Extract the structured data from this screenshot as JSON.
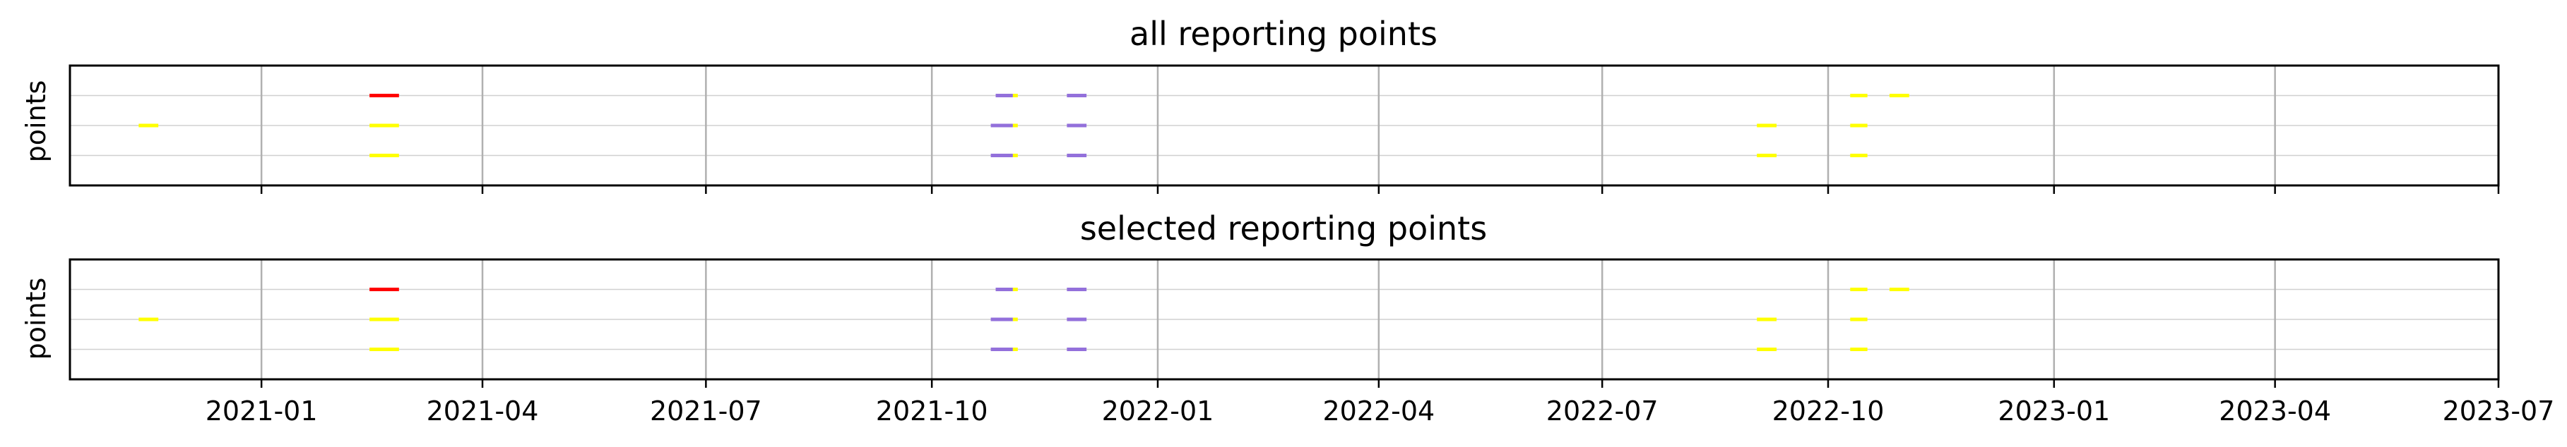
{
  "chart_data": [
    {
      "type": "timeline",
      "title": "all reporting points",
      "ylabel": "points",
      "xlim": [
        "2020-10-15",
        "2023-07-01"
      ],
      "ylim": [
        0,
        4
      ],
      "grid": {
        "x": true,
        "y": true
      },
      "row_values": [
        1,
        2,
        3
      ],
      "segments": [
        {
          "row": 2,
          "start": "2020-11-12",
          "end": "2020-11-20",
          "color": "#ffff00"
        },
        {
          "row": 3,
          "start": "2021-02-14",
          "end": "2021-02-26",
          "color": "#ff0000"
        },
        {
          "row": 2,
          "start": "2021-02-14",
          "end": "2021-02-26",
          "color": "#ffff00"
        },
        {
          "row": 1,
          "start": "2021-02-14",
          "end": "2021-02-26",
          "color": "#ffff00"
        },
        {
          "row": 3,
          "start": "2021-10-27",
          "end": "2021-11-03",
          "color": "#9370db"
        },
        {
          "row": 3,
          "start": "2021-11-03",
          "end": "2021-11-05",
          "color": "#ffff00"
        },
        {
          "row": 2,
          "start": "2021-10-25",
          "end": "2021-11-03",
          "color": "#9370db"
        },
        {
          "row": 2,
          "start": "2021-11-03",
          "end": "2021-11-05",
          "color": "#ffff00"
        },
        {
          "row": 1,
          "start": "2021-10-25",
          "end": "2021-11-03",
          "color": "#9370db"
        },
        {
          "row": 1,
          "start": "2021-11-03",
          "end": "2021-11-05",
          "color": "#ffff00"
        },
        {
          "row": 3,
          "start": "2021-11-25",
          "end": "2021-12-03",
          "color": "#9370db"
        },
        {
          "row": 2,
          "start": "2021-11-25",
          "end": "2021-12-03",
          "color": "#9370db"
        },
        {
          "row": 1,
          "start": "2021-11-25",
          "end": "2021-12-03",
          "color": "#9370db"
        },
        {
          "row": 2,
          "start": "2022-09-02",
          "end": "2022-09-10",
          "color": "#ffff00"
        },
        {
          "row": 1,
          "start": "2022-09-02",
          "end": "2022-09-10",
          "color": "#ffff00"
        },
        {
          "row": 3,
          "start": "2022-10-10",
          "end": "2022-10-17",
          "color": "#ffff00"
        },
        {
          "row": 2,
          "start": "2022-10-10",
          "end": "2022-10-17",
          "color": "#ffff00"
        },
        {
          "row": 1,
          "start": "2022-10-10",
          "end": "2022-10-17",
          "color": "#ffff00"
        },
        {
          "row": 3,
          "start": "2022-10-26",
          "end": "2022-11-03",
          "color": "#ffff00"
        }
      ],
      "x_ticks": [
        "2021-01-01",
        "2021-04-01",
        "2021-07-01",
        "2021-10-01",
        "2022-01-01",
        "2022-04-01",
        "2022-07-01",
        "2022-10-01",
        "2023-01-01",
        "2023-04-01",
        "2023-07-01"
      ],
      "x_tick_labels": []
    },
    {
      "type": "timeline",
      "title": "selected reporting points",
      "ylabel": "points",
      "xlim": [
        "2020-10-15",
        "2023-07-01"
      ],
      "ylim": [
        0,
        4
      ],
      "grid": {
        "x": true,
        "y": true
      },
      "row_values": [
        1,
        2,
        3
      ],
      "segments": [
        {
          "row": 2,
          "start": "2020-11-12",
          "end": "2020-11-20",
          "color": "#ffff00"
        },
        {
          "row": 3,
          "start": "2021-02-14",
          "end": "2021-02-26",
          "color": "#ff0000"
        },
        {
          "row": 2,
          "start": "2021-02-14",
          "end": "2021-02-26",
          "color": "#ffff00"
        },
        {
          "row": 1,
          "start": "2021-02-14",
          "end": "2021-02-26",
          "color": "#ffff00"
        },
        {
          "row": 3,
          "start": "2021-10-27",
          "end": "2021-11-03",
          "color": "#9370db"
        },
        {
          "row": 3,
          "start": "2021-11-03",
          "end": "2021-11-05",
          "color": "#ffff00"
        },
        {
          "row": 2,
          "start": "2021-10-25",
          "end": "2021-11-03",
          "color": "#9370db"
        },
        {
          "row": 2,
          "start": "2021-11-03",
          "end": "2021-11-05",
          "color": "#ffff00"
        },
        {
          "row": 1,
          "start": "2021-10-25",
          "end": "2021-11-03",
          "color": "#9370db"
        },
        {
          "row": 1,
          "start": "2021-11-03",
          "end": "2021-11-05",
          "color": "#ffff00"
        },
        {
          "row": 3,
          "start": "2021-11-25",
          "end": "2021-12-03",
          "color": "#9370db"
        },
        {
          "row": 2,
          "start": "2021-11-25",
          "end": "2021-12-03",
          "color": "#9370db"
        },
        {
          "row": 1,
          "start": "2021-11-25",
          "end": "2021-12-03",
          "color": "#9370db"
        },
        {
          "row": 2,
          "start": "2022-09-02",
          "end": "2022-09-10",
          "color": "#ffff00"
        },
        {
          "row": 1,
          "start": "2022-09-02",
          "end": "2022-09-10",
          "color": "#ffff00"
        },
        {
          "row": 3,
          "start": "2022-10-10",
          "end": "2022-10-17",
          "color": "#ffff00"
        },
        {
          "row": 2,
          "start": "2022-10-10",
          "end": "2022-10-17",
          "color": "#ffff00"
        },
        {
          "row": 1,
          "start": "2022-10-10",
          "end": "2022-10-17",
          "color": "#ffff00"
        },
        {
          "row": 3,
          "start": "2022-10-26",
          "end": "2022-11-03",
          "color": "#ffff00"
        }
      ],
      "x_ticks": [
        "2021-01-01",
        "2021-04-01",
        "2021-07-01",
        "2021-10-01",
        "2022-01-01",
        "2022-04-01",
        "2022-07-01",
        "2022-10-01",
        "2023-01-01",
        "2023-04-01",
        "2023-07-01"
      ],
      "x_tick_labels": [
        "2021-01",
        "2021-04",
        "2021-07",
        "2021-10",
        "2022-01",
        "2022-04",
        "2022-07",
        "2022-10",
        "2023-01",
        "2023-04",
        "2023-07"
      ]
    }
  ]
}
